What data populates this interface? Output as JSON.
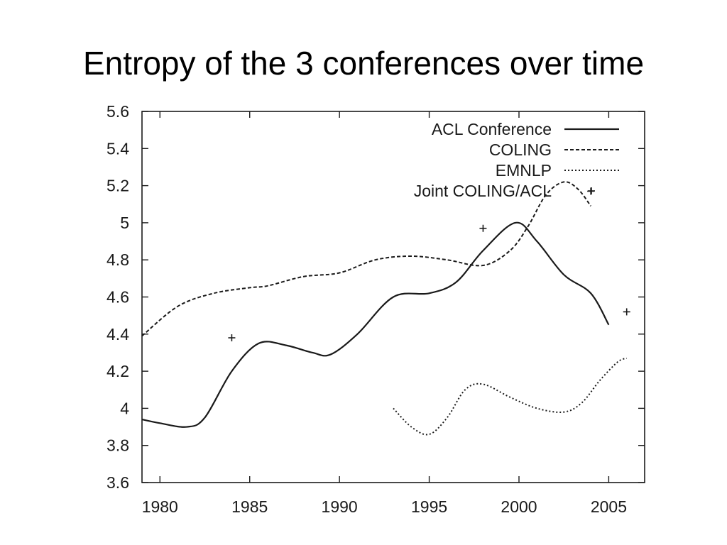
{
  "slide": {
    "title": "Entropy of the 3 conferences over time"
  },
  "chart_data": {
    "type": "line",
    "title": "",
    "xlabel": "",
    "ylabel": "",
    "xlim": [
      1979,
      2007
    ],
    "ylim": [
      3.6,
      5.6
    ],
    "xticks": [
      1980,
      1985,
      1990,
      1995,
      2000,
      2005
    ],
    "yticks": [
      3.6,
      3.8,
      4,
      4.2,
      4.4,
      4.6,
      4.8,
      5,
      5.2,
      5.4,
      5.6
    ],
    "ytick_labels": [
      "3.6",
      "3.8",
      "4",
      "4.2",
      "4.4",
      "4.6",
      "4.8",
      "5",
      "5.2",
      "5.4",
      "5.6"
    ],
    "xtick_labels": [
      "1980",
      "1985",
      "1990",
      "1995",
      "2000",
      "2005"
    ],
    "grid": false,
    "legend_position": "top-right",
    "series": [
      {
        "name": "ACL Conference",
        "style": "solid",
        "color": "#1a1a1a",
        "points": [
          [
            1979,
            3.94
          ],
          [
            1980,
            3.92
          ],
          [
            1981.5,
            3.9
          ],
          [
            1982.5,
            3.95
          ],
          [
            1984,
            4.2
          ],
          [
            1985.5,
            4.35
          ],
          [
            1987,
            4.34
          ],
          [
            1988.5,
            4.3
          ],
          [
            1989.5,
            4.29
          ],
          [
            1991,
            4.4
          ],
          [
            1993,
            4.6
          ],
          [
            1995,
            4.62
          ],
          [
            1996.5,
            4.68
          ],
          [
            1998,
            4.85
          ],
          [
            1999.8,
            5.0
          ],
          [
            2001,
            4.9
          ],
          [
            2002.5,
            4.72
          ],
          [
            2004,
            4.62
          ],
          [
            2005,
            4.45
          ]
        ]
      },
      {
        "name": "COLING",
        "style": "dashed",
        "color": "#1a1a1a",
        "points": [
          [
            1979,
            4.39
          ],
          [
            1981,
            4.55
          ],
          [
            1983,
            4.62
          ],
          [
            1985,
            4.65
          ],
          [
            1986,
            4.66
          ],
          [
            1988,
            4.71
          ],
          [
            1990,
            4.73
          ],
          [
            1992,
            4.8
          ],
          [
            1994,
            4.82
          ],
          [
            1996,
            4.8
          ],
          [
            1998,
            4.77
          ],
          [
            1999.5,
            4.85
          ],
          [
            2000.5,
            4.98
          ],
          [
            2001.5,
            5.15
          ],
          [
            2002.5,
            5.22
          ],
          [
            2003.3,
            5.18
          ],
          [
            2004,
            5.09
          ]
        ]
      },
      {
        "name": "EMNLP",
        "style": "dotted",
        "color": "#1a1a1a",
        "points": [
          [
            1993,
            4.0
          ],
          [
            1994,
            3.9
          ],
          [
            1995,
            3.86
          ],
          [
            1996,
            3.95
          ],
          [
            1997,
            4.1
          ],
          [
            1998,
            4.13
          ],
          [
            1999.5,
            4.06
          ],
          [
            2001,
            4.0
          ],
          [
            2002.5,
            3.98
          ],
          [
            2003.5,
            4.03
          ],
          [
            2004.5,
            4.15
          ],
          [
            2005.5,
            4.25
          ],
          [
            2006,
            4.27
          ]
        ]
      },
      {
        "name": "Joint COLING/ACL",
        "style": "points",
        "marker": "+",
        "color": "#1a1a1a",
        "points": [
          [
            1984,
            4.38
          ],
          [
            1998,
            4.97
          ],
          [
            2004,
            5.17
          ],
          [
            2006,
            4.52
          ]
        ]
      }
    ]
  }
}
